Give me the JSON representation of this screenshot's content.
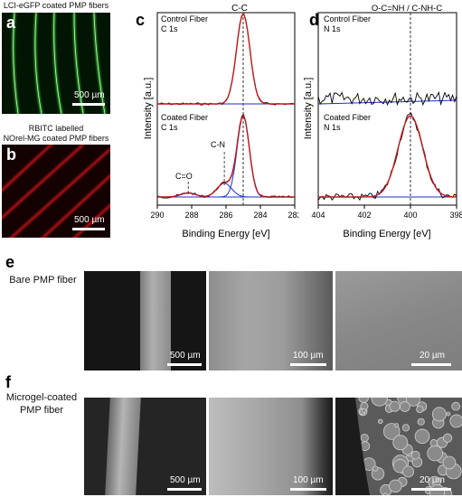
{
  "panel_a": {
    "letter": "a",
    "caption": "LCI-eGFP coated PMP fibers",
    "scale_label": "500 µm"
  },
  "panel_b": {
    "letter": "b",
    "caption_line1": "RBITC labelled",
    "caption_line2": "NOrel-MG coated PMP fibers",
    "scale_label": "500 µm"
  },
  "panel_c": {
    "letter": "c",
    "peak_label": "C-C",
    "top_label_line1": "Control Fiber",
    "top_label_line2": "C 1s",
    "bottom_label_line1": "Coated Fiber",
    "bottom_label_line2": "C 1s",
    "annotation_cn": "C-N",
    "annotation_co": "C=O"
  },
  "panel_d": {
    "letter": "d",
    "peak_label": "O-C=NH / C-NH-C",
    "top_label_line1": "Control Fiber",
    "top_label_line2": "N 1s",
    "bottom_label_line1": "Coated Fiber",
    "bottom_label_line2": "N 1s"
  },
  "panel_e": {
    "letter": "e",
    "row_label": "Bare PMP fiber",
    "scales": [
      "500 µm",
      "100 µm",
      "20 µm"
    ]
  },
  "panel_f": {
    "letter": "f",
    "row_label_line1": "Microgel-coated",
    "row_label_line2": "PMP fiber",
    "scales": [
      "500 µm",
      "100 µm",
      "20 µm"
    ]
  },
  "chart_data": [
    {
      "type": "line",
      "panel": "c",
      "xlabel": "Binding Energy [eV]",
      "ylabel": "Intensity [a.u.]",
      "xlim": [
        290,
        282
      ],
      "xticks": [
        "290",
        "288",
        "286",
        "284",
        "282"
      ],
      "reference_line": 285,
      "series": [
        {
          "name": "Control Fiber C 1s",
          "color": "#c0171d",
          "peaks": [
            {
              "center": 285.0,
              "height": 1.0,
              "width": 0.55
            }
          ]
        },
        {
          "name": "Coated Fiber C 1s",
          "color": "#c0171d",
          "peaks": [
            {
              "center": 285.0,
              "height": 1.0,
              "width": 0.5
            },
            {
              "center": 286.1,
              "height": 0.17,
              "width": 0.6
            },
            {
              "center": 288.2,
              "height": 0.05,
              "width": 0.6
            }
          ]
        }
      ]
    },
    {
      "type": "line",
      "panel": "d",
      "xlabel": "Binding Energy [eV]",
      "ylabel": "Intensity [a.u.]",
      "xlim": [
        404,
        398
      ],
      "xticks": [
        "404",
        "402",
        "400",
        "398"
      ],
      "reference_line": 400,
      "series": [
        {
          "name": "Control Fiber N 1s",
          "color": "#0000cc",
          "peaks": []
        },
        {
          "name": "Coated Fiber N 1s",
          "color": "#c0171d",
          "peaks": [
            {
              "center": 400.0,
              "height": 1.0,
              "width": 0.75
            }
          ]
        }
      ]
    }
  ],
  "colors": {
    "fluor_green": "#3dd13a",
    "fluor_red": "#e0181b",
    "fit_red": "#c0171d",
    "baseline_blue": "#1f2fcf"
  }
}
